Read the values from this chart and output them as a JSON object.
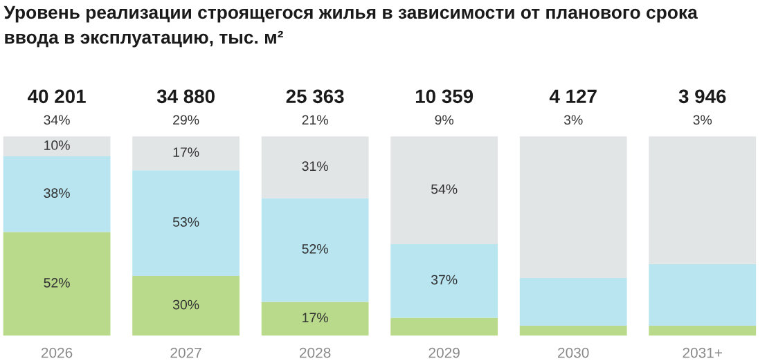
{
  "chart_data": {
    "type": "bar",
    "title": "Уровень реализации строящегося жилья в зависимости от планового срока\nввода в эксплуатацию, тыс. м²",
    "categories": [
      "2026",
      "2027",
      "2028",
      "2029",
      "2030",
      "2031+"
    ],
    "stacked": true,
    "series": [
      {
        "color": "#b9da8b",
        "values": [
          52,
          30,
          17,
          9,
          5,
          5
        ],
        "value_labels": [
          "52%",
          "30%",
          "17%",
          null,
          null,
          null
        ]
      },
      {
        "color": "#b9e5f1",
        "values": [
          38,
          53,
          52,
          37,
          24,
          31
        ],
        "value_labels": [
          "38%",
          "53%",
          "52%",
          "37%",
          null,
          null
        ]
      },
      {
        "color": "#e2e5e6",
        "values": [
          10,
          17,
          31,
          54,
          71,
          64
        ],
        "value_labels": [
          "10%",
          "17%",
          "31%",
          "54%",
          null,
          null
        ]
      }
    ],
    "annotations": [
      "40 201",
      "34 880",
      "25 363",
      "10 359",
      "4 127",
      "3 946",
      "34%",
      "29%",
      "21%",
      "9%",
      "3%",
      "3%"
    ]
  }
}
